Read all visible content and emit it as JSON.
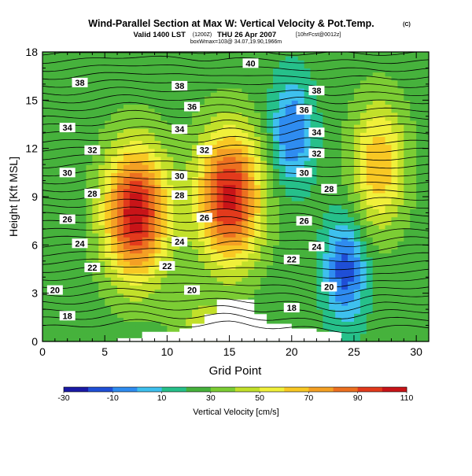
{
  "chart_data": {
    "type": "heatmap",
    "title": "Wind-Parallel Section at Max W: Vertical Velocity & Pot.Temp.",
    "title_mark": "(C)",
    "subtitle_valid": "Valid 1400 LST",
    "subtitle_run": "(1200Z)",
    "subtitle_date": "THU 26 Apr 2007",
    "subtitle_fcst": "[10hrFcst@0012z]",
    "subtitle_max": "boxWmax=103@ 34.07,19.90,1966m",
    "xlabel": "Grid Point",
    "ylabel": "Height [Kft MSL]",
    "xlim": [
      0,
      31
    ],
    "ylim": [
      0,
      18
    ],
    "x_ticks": [
      "0",
      "5",
      "10",
      "15",
      "20",
      "25",
      "30"
    ],
    "y_ticks": [
      "0",
      "3",
      "6",
      "9",
      "12",
      "15",
      "18"
    ],
    "colorbar": {
      "label": "Vertical Velocity [cm/s]",
      "tick_labels": [
        "-30",
        "-10",
        "10",
        "30",
        "50",
        "70",
        "90",
        "110"
      ],
      "levels": [
        -30,
        -20,
        -10,
        0,
        10,
        20,
        30,
        40,
        50,
        60,
        70,
        80,
        90,
        100,
        110
      ],
      "colors": [
        "#1a1aa6",
        "#1f4fd6",
        "#2f8cf0",
        "#3ec0ee",
        "#26c08a",
        "#46b23c",
        "#7ccd34",
        "#c2e02a",
        "#f0f03a",
        "#f8c824",
        "#f4a024",
        "#ec7020",
        "#e23a1c",
        "#c81418"
      ]
    },
    "updraft_cores": [
      {
        "x": 7.5,
        "y": 8.0,
        "w_max": 103
      },
      {
        "x": 15,
        "y": 9.0,
        "w_max": 100
      },
      {
        "x": 27,
        "y": 11.0,
        "w_max": 65
      }
    ],
    "downdraft_zones": [
      {
        "x": 20,
        "y": 13.0,
        "w_min": -15
      },
      {
        "x": 24.3,
        "y": 4.5,
        "w_min": -20
      }
    ],
    "terrain": [
      [
        0,
        0
      ],
      [
        6,
        0
      ],
      [
        6,
        0.2
      ],
      [
        8,
        0.2
      ],
      [
        8,
        0.6
      ],
      [
        11,
        0.6
      ],
      [
        11,
        0.8
      ],
      [
        12,
        0.8
      ],
      [
        12,
        1.1
      ],
      [
        13,
        1.1
      ],
      [
        13,
        1.7
      ],
      [
        14,
        1.7
      ],
      [
        14,
        2.6
      ],
      [
        17,
        2.6
      ],
      [
        17,
        1.7
      ],
      [
        18,
        1.7
      ],
      [
        18,
        1.1
      ],
      [
        20,
        1.1
      ],
      [
        20,
        0.8
      ],
      [
        22,
        0.8
      ],
      [
        22,
        0.6
      ],
      [
        24,
        0.6
      ],
      [
        24,
        0
      ],
      [
        31,
        0
      ]
    ],
    "theta_labels": [
      {
        "text": "40",
        "x": 16.7,
        "y": 17.3
      },
      {
        "text": "38",
        "x": 3.0,
        "y": 16.1
      },
      {
        "text": "38",
        "x": 11.0,
        "y": 15.9
      },
      {
        "text": "38",
        "x": 22.0,
        "y": 15.6
      },
      {
        "text": "36",
        "x": 12.0,
        "y": 14.6
      },
      {
        "text": "36",
        "x": 21.0,
        "y": 14.4
      },
      {
        "text": "34",
        "x": 2.0,
        "y": 13.3
      },
      {
        "text": "34",
        "x": 11.0,
        "y": 13.2
      },
      {
        "text": "34",
        "x": 22.0,
        "y": 13.0
      },
      {
        "text": "32",
        "x": 4.0,
        "y": 11.9
      },
      {
        "text": "32",
        "x": 13.0,
        "y": 11.9
      },
      {
        "text": "32",
        "x": 22.0,
        "y": 11.7
      },
      {
        "text": "30",
        "x": 2.0,
        "y": 10.5
      },
      {
        "text": "30",
        "x": 11.0,
        "y": 10.3
      },
      {
        "text": "30",
        "x": 21.0,
        "y": 10.5
      },
      {
        "text": "28",
        "x": 4.0,
        "y": 9.2
      },
      {
        "text": "28",
        "x": 11.0,
        "y": 9.1
      },
      {
        "text": "28",
        "x": 23.0,
        "y": 9.5
      },
      {
        "text": "26",
        "x": 2.0,
        "y": 7.6
      },
      {
        "text": "26",
        "x": 13.0,
        "y": 7.7
      },
      {
        "text": "26",
        "x": 21.0,
        "y": 7.5
      },
      {
        "text": "24",
        "x": 3.0,
        "y": 6.1
      },
      {
        "text": "24",
        "x": 11.0,
        "y": 6.2
      },
      {
        "text": "24",
        "x": 22.0,
        "y": 5.9
      },
      {
        "text": "22",
        "x": 4.0,
        "y": 4.6
      },
      {
        "text": "22",
        "x": 10.0,
        "y": 4.7
      },
      {
        "text": "22",
        "x": 20.0,
        "y": 5.1
      },
      {
        "text": "20",
        "x": 1.0,
        "y": 3.2
      },
      {
        "text": "20",
        "x": 12.0,
        "y": 3.2
      },
      {
        "text": "20",
        "x": 23.0,
        "y": 3.4
      },
      {
        "text": "18",
        "x": 2.0,
        "y": 1.6
      },
      {
        "text": "18",
        "x": 20.0,
        "y": 2.1
      }
    ]
  }
}
